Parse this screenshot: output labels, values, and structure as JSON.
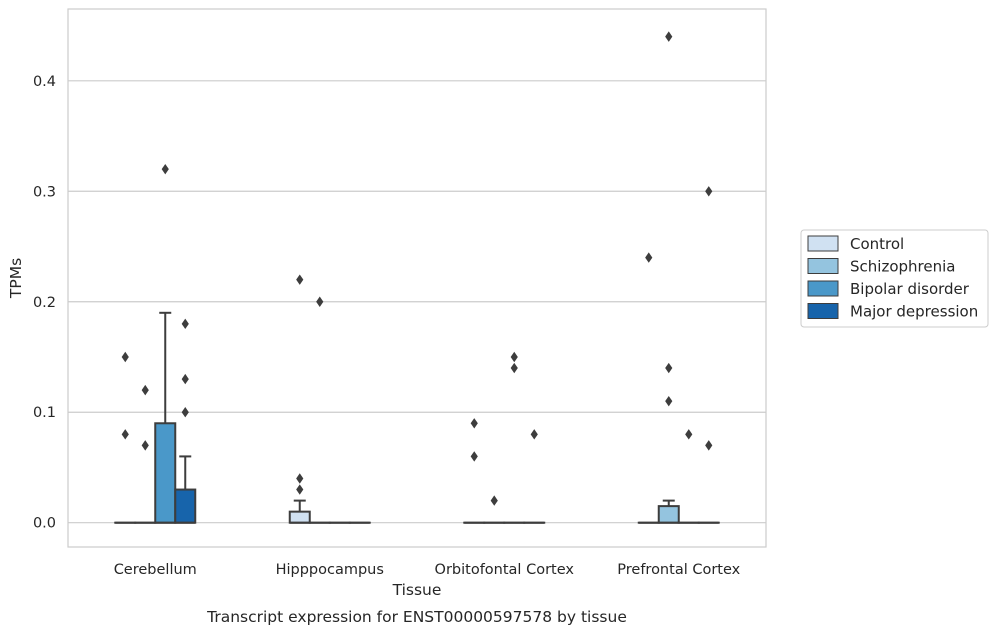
{
  "chart_data": {
    "type": "box",
    "title": "Transcript expression for ENST00000597578 by tissue",
    "xlabel": "Tissue",
    "ylabel": "TPMs",
    "ylim": [
      -0.022,
      0.465
    ],
    "yticks": [
      0.0,
      0.1,
      0.2,
      0.3,
      0.4
    ],
    "ytick_labels": [
      "0.0",
      "0.1",
      "0.2",
      "0.3",
      "0.4"
    ],
    "grid": "horizontal",
    "legend_position": "right",
    "categories": [
      "Cerebellum",
      "Hipppocampus",
      "Orbitofontal Cortex",
      "Prefrontal Cortex"
    ],
    "series": [
      {
        "name": "Control",
        "color": "#d0e1f2",
        "boxes": [
          {
            "q1": 0,
            "median": 0,
            "q3": 0,
            "whisker_low": 0,
            "whisker_high": 0,
            "outliers": [
              0.15,
              0.08
            ]
          },
          {
            "q1": 0,
            "median": 0,
            "q3": 0.01,
            "whisker_low": 0,
            "whisker_high": 0.02,
            "outliers": [
              0.22,
              0.04,
              0.03
            ]
          },
          {
            "q1": 0,
            "median": 0,
            "q3": 0,
            "whisker_low": 0,
            "whisker_high": 0,
            "outliers": [
              0.09,
              0.06
            ]
          },
          {
            "q1": 0,
            "median": 0,
            "q3": 0,
            "whisker_low": 0,
            "whisker_high": 0,
            "outliers": [
              0.24
            ]
          }
        ]
      },
      {
        "name": "Schizophrenia",
        "color": "#94c4df",
        "boxes": [
          {
            "q1": 0,
            "median": 0,
            "q3": 0,
            "whisker_low": 0,
            "whisker_high": 0,
            "outliers": [
              0.12,
              0.07
            ]
          },
          {
            "q1": 0,
            "median": 0,
            "q3": 0,
            "whisker_low": 0,
            "whisker_high": 0,
            "outliers": [
              0.2
            ]
          },
          {
            "q1": 0,
            "median": 0,
            "q3": 0,
            "whisker_low": 0,
            "whisker_high": 0,
            "outliers": [
              0.02
            ]
          },
          {
            "q1": 0,
            "median": 0,
            "q3": 0.015,
            "whisker_low": 0,
            "whisker_high": 0.02,
            "outliers": [
              0.44,
              0.14,
              0.11
            ]
          }
        ]
      },
      {
        "name": "Bipolar disorder",
        "color": "#4a98c9",
        "boxes": [
          {
            "q1": 0,
            "median": 0,
            "q3": 0.09,
            "whisker_low": 0,
            "whisker_high": 0.19,
            "outliers": [
              0.32
            ]
          },
          {
            "q1": 0,
            "median": 0,
            "q3": 0,
            "whisker_low": 0,
            "whisker_high": 0,
            "outliers": []
          },
          {
            "q1": 0,
            "median": 0,
            "q3": 0,
            "whisker_low": 0,
            "whisker_high": 0,
            "outliers": [
              0.15,
              0.14
            ]
          },
          {
            "q1": 0,
            "median": 0,
            "q3": 0,
            "whisker_low": 0,
            "whisker_high": 0,
            "outliers": [
              0.08
            ]
          }
        ]
      },
      {
        "name": "Major depression",
        "color": "#1764ab",
        "boxes": [
          {
            "q1": 0,
            "median": 0,
            "q3": 0.03,
            "whisker_low": 0,
            "whisker_high": 0.06,
            "outliers": [
              0.18,
              0.13,
              0.1
            ]
          },
          {
            "q1": 0,
            "median": 0,
            "q3": 0,
            "whisker_low": 0,
            "whisker_high": 0,
            "outliers": []
          },
          {
            "q1": 0,
            "median": 0,
            "q3": 0,
            "whisker_low": 0,
            "whisker_high": 0,
            "outliers": [
              0.08
            ]
          },
          {
            "q1": 0,
            "median": 0,
            "q3": 0,
            "whisker_low": 0,
            "whisker_high": 0,
            "outliers": [
              0.3,
              0.07
            ]
          }
        ]
      }
    ]
  }
}
